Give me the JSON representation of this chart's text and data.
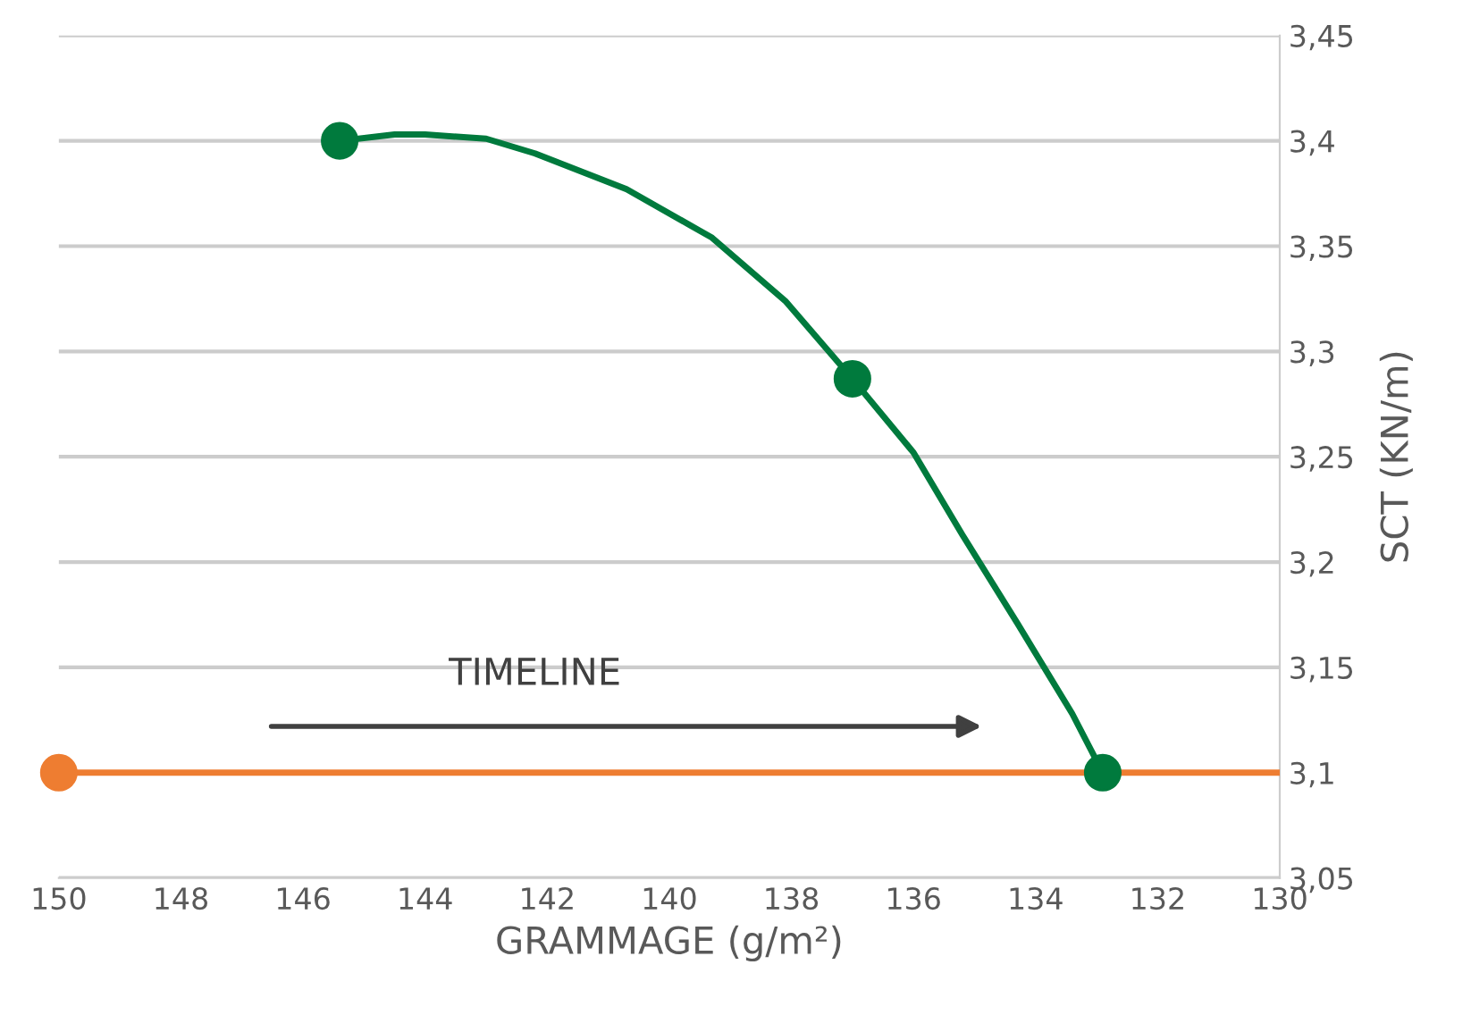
{
  "chart_data": {
    "type": "line",
    "xlabel": "GRAMMAGE (g/m²)",
    "ylabel": "SCT (KN/m)",
    "xlim": [
      150,
      130
    ],
    "xticks": [
      150,
      148,
      146,
      144,
      142,
      140,
      138,
      136,
      134,
      132,
      130
    ],
    "ylim": [
      3.05,
      3.45
    ],
    "yticks": [
      {
        "value": 3.05,
        "label": "3,05"
      },
      {
        "value": 3.1,
        "label": "3,1"
      },
      {
        "value": 3.15,
        "label": "3,15"
      },
      {
        "value": 3.2,
        "label": "3,2"
      },
      {
        "value": 3.25,
        "label": "3,25"
      },
      {
        "value": 3.3,
        "label": "3,3"
      },
      {
        "value": 3.35,
        "label": "3,35"
      },
      {
        "value": 3.4,
        "label": "3,4"
      },
      {
        "value": 3.45,
        "label": "3,45"
      }
    ],
    "grid": "y",
    "legend": false,
    "line_style": "solid",
    "annotations": [
      "TIMELINE"
    ],
    "series": [
      {
        "color": "#ee7d31",
        "x": [
          150,
          130
        ],
        "values": [
          3.1,
          3.1
        ],
        "marker": "none"
      },
      {
        "type": "scatter",
        "color": "#ee7d31",
        "x": [
          150
        ],
        "values": [
          3.1
        ],
        "marker": "circle"
      },
      {
        "color": "#007a3d",
        "x": [
          145.4,
          144.5,
          144,
          143,
          142.2,
          140.7,
          139.3,
          138.1,
          137,
          136,
          135.2,
          134.3,
          133.4,
          132.9
        ],
        "values": [
          3.4,
          3.403,
          3.403,
          3.401,
          3.394,
          3.377,
          3.354,
          3.324,
          3.287,
          3.252,
          3.213,
          3.171,
          3.128,
          3.1
        ],
        "marker": "none"
      },
      {
        "type": "scatter",
        "color": "#007a3d",
        "x": [
          145.4,
          137,
          132.9
        ],
        "values": [
          3.4,
          3.287,
          3.1
        ],
        "marker": "circle"
      }
    ]
  }
}
